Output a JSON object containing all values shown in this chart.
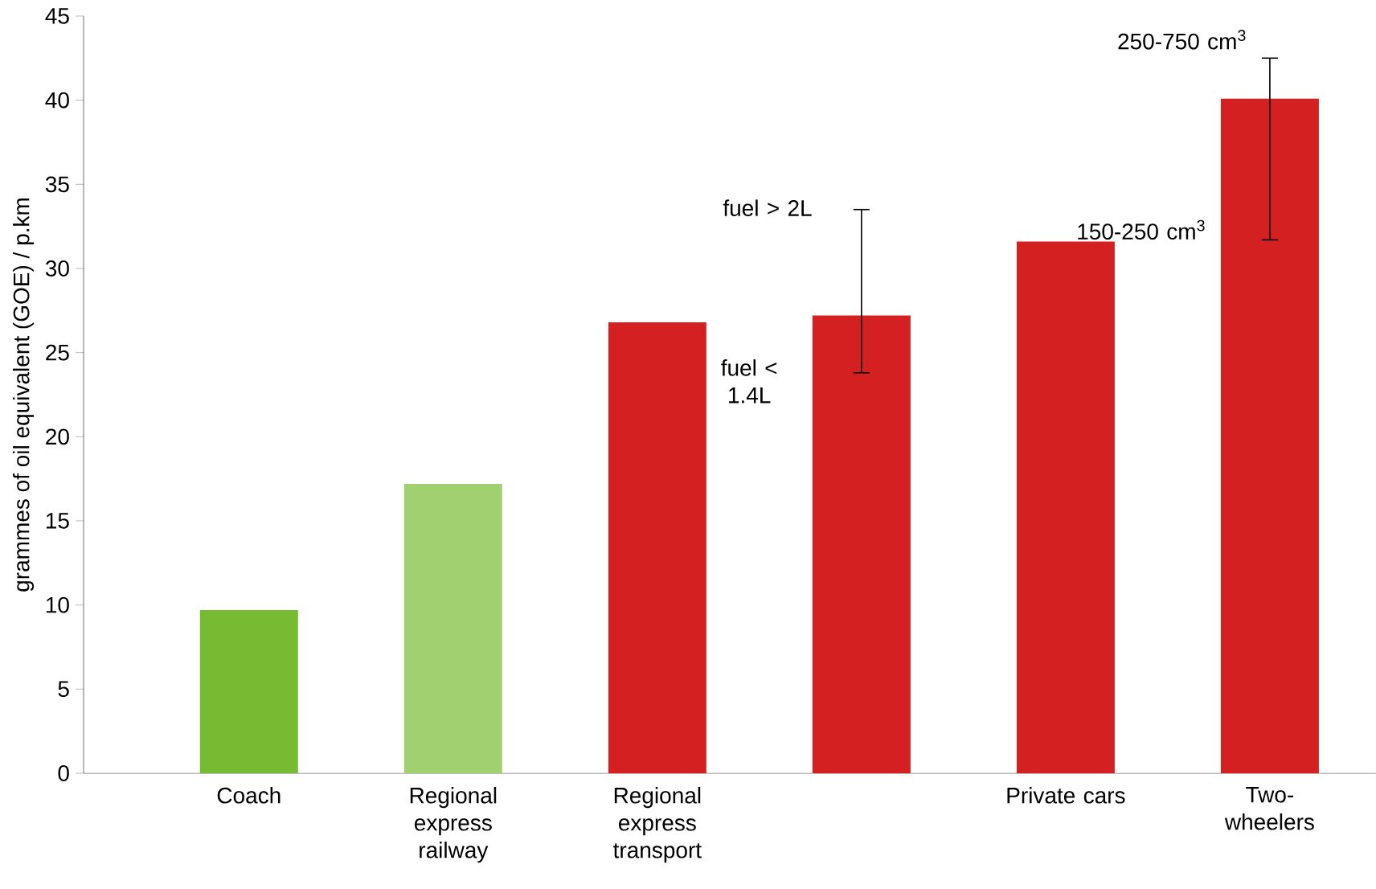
{
  "chart_data": {
    "type": "bar",
    "ylabel": "grammes of oil equivalent (GOE) / p.km",
    "categories": [
      "Coach",
      "Regional express railway",
      "Regional express transport",
      null,
      "Private cars",
      "Two-wheelers"
    ],
    "values": [
      9.7,
      17.2,
      26.8,
      27.2,
      31.6,
      40.1
    ],
    "colors": [
      "#77bb33",
      "#a0d070",
      "#d42020",
      "#d42020",
      "#d42020",
      "#d42020"
    ],
    "errors": [
      null,
      null,
      null,
      [
        23.8,
        33.5
      ],
      null,
      [
        31.7,
        42.5
      ]
    ],
    "annotations": [
      "250-750 cm$^{3}$",
      "150-250 cm$^{3}$",
      "fuel > 2L",
      "fuel < 1.4L"
    ],
    "ylim": [
      0,
      45
    ],
    "yticks": [
      0,
      5,
      10,
      15,
      20,
      25,
      30,
      35,
      40,
      45
    ],
    "grid": false
  }
}
